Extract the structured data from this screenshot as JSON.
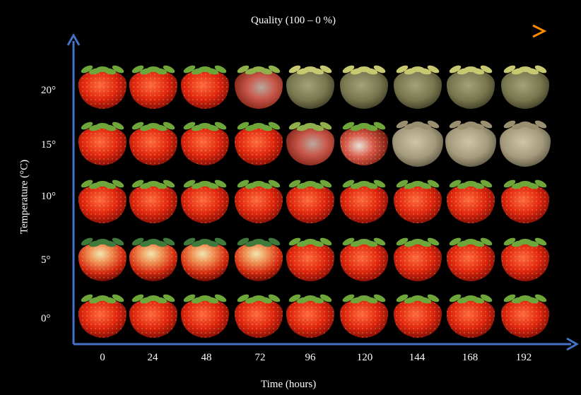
{
  "figure": {
    "quality_label": "Quality (100 – 0 %)",
    "y_axis_label": "Temperature (°C)",
    "x_axis_label": "Time (hours)",
    "y_ticks": [
      "20°",
      "15°",
      "10°",
      "5°",
      "0°"
    ],
    "x_ticks": [
      "0",
      "24",
      "48",
      "72",
      "96",
      "120",
      "144",
      "168",
      "192"
    ],
    "colors": {
      "axis": "#4472c4",
      "quality_arrow_start": "#e00000",
      "quality_arrow_end": "#ff8c00",
      "background": "#000000"
    },
    "rows": [
      {
        "temperature": "20°",
        "stages": [
          "fresh",
          "fresh",
          "fresh",
          "mold-onset",
          "moldy-green",
          "moldy-green",
          "moldy-green",
          "moldy-green",
          "moldy-green"
        ]
      },
      {
        "temperature": "15°",
        "stages": [
          "fresh",
          "fresh",
          "fresh",
          "fresh",
          "mold-onset",
          "mold-spots",
          "moldy-gray",
          "moldy-gray",
          "moldy-gray"
        ]
      },
      {
        "temperature": "10°",
        "stages": [
          "fresh",
          "fresh",
          "fresh",
          "fresh",
          "fresh",
          "fresh",
          "fresh",
          "fresh",
          "fresh"
        ]
      },
      {
        "temperature": "5°",
        "stages": [
          "fresh-pale",
          "fresh-pale",
          "fresh-pale",
          "fresh-pale",
          "fresh",
          "fresh",
          "fresh",
          "fresh",
          "fresh"
        ]
      },
      {
        "temperature": "0°",
        "stages": [
          "fresh",
          "fresh",
          "fresh",
          "fresh",
          "fresh",
          "fresh",
          "fresh",
          "fresh",
          "fresh"
        ]
      }
    ]
  }
}
